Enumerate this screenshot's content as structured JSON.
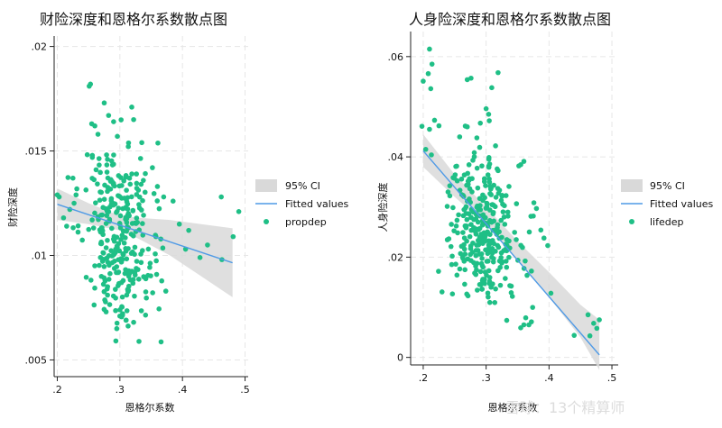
{
  "watermark": "雪球：13个精算师",
  "colors": {
    "points": "#1fbf86",
    "fit": "#4f9ae6",
    "ci": "#d9d9d9",
    "grid": "#e6e6e6"
  },
  "chart_data": [
    {
      "type": "scatter",
      "title": "财险深度和恩格尔系数散点图",
      "xlabel": "恩格尔系数",
      "ylabel": "财险深度",
      "xlim": [
        0.195,
        0.505
      ],
      "ylim": [
        0.0042,
        0.0205
      ],
      "xticks": [
        0.2,
        0.3,
        0.4,
        0.5
      ],
      "xtick_labels": [
        ".2",
        ".3",
        ".4",
        ".5"
      ],
      "yticks": [
        0.005,
        0.01,
        0.015,
        0.02
      ],
      "ytick_labels": [
        ".005",
        ".01",
        ".015",
        ".02"
      ],
      "grid": true,
      "legend": [
        "95% CI",
        "Fitted values",
        "propdep"
      ],
      "legend_position": "right",
      "fit_line": {
        "x": [
          0.2,
          0.48
        ],
        "y": [
          0.01245,
          0.00965
        ]
      },
      "ci_band": {
        "x": [
          0.2,
          0.25,
          0.3,
          0.33,
          0.38,
          0.43,
          0.48
        ],
        "upper": [
          0.0132,
          0.0125,
          0.0119,
          0.0118,
          0.0117,
          0.0115,
          0.0113
        ],
        "lower": [
          0.0117,
          0.0115,
          0.0112,
          0.0108,
          0.01,
          0.009,
          0.008
        ]
      },
      "points": {
        "fixed": [
          [
            0.2,
            0.0129
          ],
          [
            0.203,
            0.0128
          ],
          [
            0.21,
            0.0118
          ],
          [
            0.215,
            0.0114
          ],
          [
            0.225,
            0.0137
          ],
          [
            0.22,
            0.0122
          ],
          [
            0.23,
            0.0129
          ],
          [
            0.251,
            0.0181
          ],
          [
            0.253,
            0.0182
          ],
          [
            0.255,
            0.0163
          ],
          [
            0.26,
            0.0162
          ],
          [
            0.262,
            0.0141
          ],
          [
            0.265,
            0.0158
          ],
          [
            0.275,
            0.0173
          ],
          [
            0.282,
            0.0167
          ],
          [
            0.29,
            0.0164
          ],
          [
            0.296,
            0.0157
          ],
          [
            0.319,
            0.0171
          ],
          [
            0.322,
            0.0165
          ],
          [
            0.335,
            0.0154
          ],
          [
            0.352,
            0.0142
          ],
          [
            0.36,
            0.0133
          ],
          [
            0.37,
            0.0128
          ],
          [
            0.385,
            0.0126
          ],
          [
            0.395,
            0.0115
          ],
          [
            0.41,
            0.0112
          ],
          [
            0.405,
            0.0103
          ],
          [
            0.428,
            0.0099
          ],
          [
            0.44,
            0.0105
          ],
          [
            0.462,
            0.0128
          ],
          [
            0.463,
            0.0098
          ],
          [
            0.481,
            0.0109
          ],
          [
            0.49,
            0.0121
          ],
          [
            0.31,
            0.0069
          ],
          [
            0.322,
            0.0068
          ],
          [
            0.3,
            0.0071
          ],
          [
            0.278,
            0.0073
          ]
        ],
        "clusters": [
          {
            "n": 170,
            "cx": 0.296,
            "cy": 0.0124,
            "sx": 0.028,
            "sy": 0.0015,
            "seed": 11
          },
          {
            "n": 130,
            "cx": 0.302,
            "cy": 0.009,
            "sx": 0.027,
            "sy": 0.0012,
            "seed": 29
          }
        ]
      }
    },
    {
      "type": "scatter",
      "title": "人身险深度和恩格尔系数散点图",
      "xlabel": "恩格尔系数",
      "ylabel": "人身险深度",
      "xlim": [
        0.18,
        0.51
      ],
      "ylim": [
        -0.0015,
        0.065
      ],
      "xticks": [
        0.2,
        0.3,
        0.4,
        0.5
      ],
      "xtick_labels": [
        ".2",
        ".3",
        ".4",
        ".5"
      ],
      "yticks": [
        0,
        0.02,
        0.04,
        0.06
      ],
      "ytick_labels": [
        "0",
        ".02",
        ".04",
        ".06"
      ],
      "grid": true,
      "legend": [
        "95% CI",
        "Fitted values",
        "lifedep"
      ],
      "legend_position": "right",
      "fit_line": {
        "x": [
          0.2,
          0.48
        ],
        "y": [
          0.0412,
          0.0005
        ]
      },
      "ci_band": {
        "x": [
          0.2,
          0.25,
          0.3,
          0.35,
          0.4,
          0.45,
          0.48
        ],
        "upper": [
          0.0445,
          0.0365,
          0.03,
          0.0232,
          0.017,
          0.0105,
          0.0075
        ],
        "lower": [
          0.038,
          0.032,
          0.0265,
          0.0195,
          0.012,
          0.004,
          -0.0025
        ]
      },
      "points": {
        "fixed": [
          [
            0.21,
            0.0615
          ],
          [
            0.214,
            0.0585
          ],
          [
            0.208,
            0.0566
          ],
          [
            0.212,
            0.0536
          ],
          [
            0.2,
            0.0551
          ],
          [
            0.198,
            0.0461
          ],
          [
            0.218,
            0.0473
          ],
          [
            0.21,
            0.0455
          ],
          [
            0.225,
            0.0462
          ],
          [
            0.213,
            0.0404
          ],
          [
            0.204,
            0.0415
          ],
          [
            0.27,
            0.0554
          ],
          [
            0.276,
            0.0557
          ],
          [
            0.309,
            0.0538
          ],
          [
            0.319,
            0.0568
          ],
          [
            0.3,
            0.0496
          ],
          [
            0.304,
            0.0485
          ],
          [
            0.305,
            0.0472
          ],
          [
            0.27,
            0.046
          ],
          [
            0.315,
            0.0422
          ],
          [
            0.36,
            0.0391
          ],
          [
            0.352,
            0.0382
          ],
          [
            0.38,
            0.0297
          ],
          [
            0.375,
            0.0282
          ],
          [
            0.392,
            0.0238
          ],
          [
            0.398,
            0.0223
          ],
          [
            0.387,
            0.0254
          ],
          [
            0.363,
            0.0079
          ],
          [
            0.368,
            0.0065
          ],
          [
            0.372,
            0.0071
          ],
          [
            0.355,
            0.0059
          ],
          [
            0.36,
            0.0065
          ],
          [
            0.403,
            0.0128
          ],
          [
            0.44,
            0.0044
          ],
          [
            0.462,
            0.0085
          ],
          [
            0.471,
            0.0068
          ],
          [
            0.476,
            0.0058
          ],
          [
            0.48,
            0.0075
          ],
          [
            0.465,
            0.0043
          ]
        ],
        "clusters": [
          {
            "n": 175,
            "cx": 0.288,
            "cy": 0.03,
            "sx": 0.026,
            "sy": 0.0055,
            "seed": 47
          },
          {
            "n": 135,
            "cx": 0.305,
            "cy": 0.0195,
            "sx": 0.029,
            "sy": 0.0045,
            "seed": 83
          }
        ]
      }
    }
  ]
}
